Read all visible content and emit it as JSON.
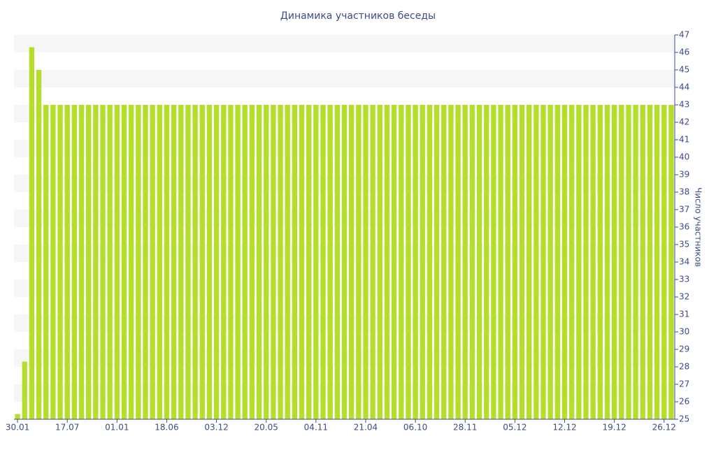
{
  "chart_data": {
    "type": "bar",
    "title": "Динамика участников беседы",
    "y_label": "Число участников",
    "categories": [
      "30.01",
      null,
      null,
      null,
      null,
      null,
      null,
      "17.07",
      null,
      null,
      null,
      null,
      null,
      null,
      "01.01",
      null,
      null,
      null,
      null,
      null,
      null,
      "18.06",
      null,
      null,
      null,
      null,
      null,
      null,
      "03.12",
      null,
      null,
      null,
      null,
      null,
      null,
      "20.05",
      null,
      null,
      null,
      null,
      null,
      null,
      "04.11",
      null,
      null,
      null,
      null,
      null,
      null,
      "21.04",
      null,
      null,
      null,
      null,
      null,
      null,
      "06.10",
      null,
      null,
      null,
      null,
      null,
      null,
      "28.11",
      null,
      null,
      null,
      null,
      null,
      null,
      "05.12",
      null,
      null,
      null,
      null,
      null,
      null,
      "12.12",
      null,
      null,
      null,
      null,
      null,
      null,
      "19.12",
      null,
      null,
      null,
      null,
      null,
      null,
      "26.12",
      null
    ],
    "values": [
      25.3,
      28.3,
      46.3,
      45,
      43,
      43,
      43,
      43,
      43,
      43,
      43,
      43,
      43,
      43,
      43,
      43,
      43,
      43,
      43,
      43,
      43,
      43,
      43,
      43,
      43,
      43,
      43,
      43,
      43,
      43,
      43,
      43,
      43,
      43,
      43,
      43,
      43,
      43,
      43,
      43,
      43,
      43,
      43,
      43,
      43,
      43,
      43,
      43,
      43,
      43,
      43,
      43,
      43,
      43,
      43,
      43,
      43,
      43,
      43,
      43,
      43,
      43,
      43,
      43,
      43,
      43,
      43,
      43,
      43,
      43,
      43,
      43,
      43,
      43,
      43,
      43,
      43,
      43,
      43,
      43,
      43,
      43,
      43,
      43,
      43,
      43,
      43,
      43,
      43,
      43,
      43,
      43,
      43
    ],
    "color": "#b5de2b",
    "ylim": [
      25,
      47
    ],
    "yticks": [
      25,
      26,
      27,
      28,
      29,
      30,
      31,
      32,
      33,
      34,
      35,
      36,
      37,
      38,
      39,
      40,
      41,
      42,
      43,
      44,
      45,
      46,
      47
    ],
    "grid": true,
    "y_axis_side": "right"
  }
}
